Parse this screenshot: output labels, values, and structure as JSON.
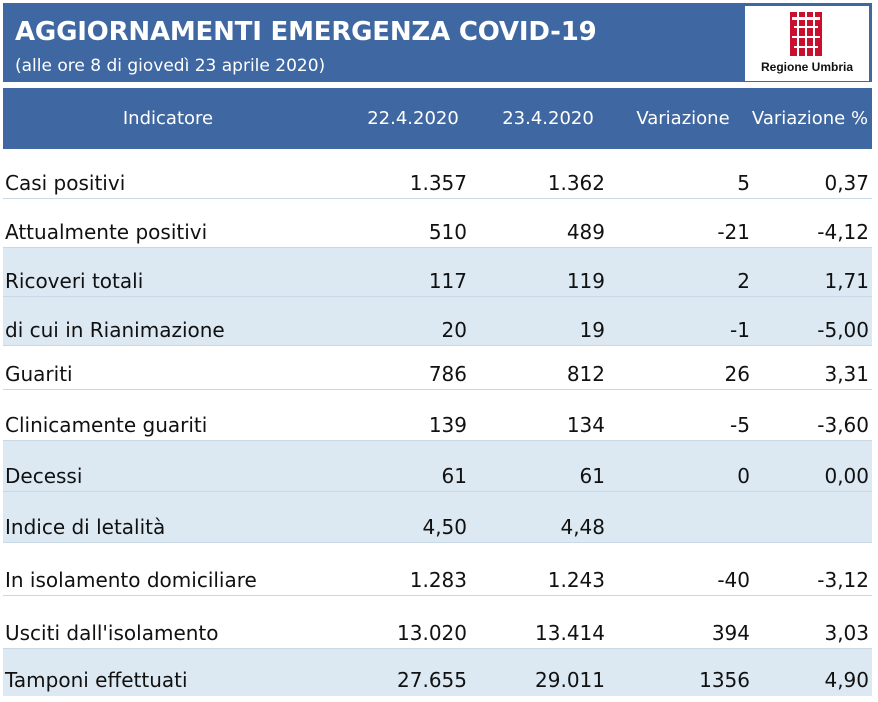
{
  "header": {
    "title": "AGGIORNAMENTI EMERGENZA COVID-19",
    "subtitle": "(alle ore 8 di giovedì 23 aprile 2020)",
    "logo_text": "Regione Umbria"
  },
  "colors": {
    "header_blue": "#3f67a1",
    "alt_row": "#dce9f2",
    "logo_red": "#c8102e"
  },
  "table": {
    "columns": [
      "Indicatore",
      "22.4.2020",
      "23.4.2020",
      "Variazione",
      "Variazione %"
    ],
    "rows": [
      {
        "label": "Casi positivi",
        "d1": "1.357",
        "d2": "1.362",
        "var": "5",
        "varp": "0,37"
      },
      {
        "label": "Attualmente positivi",
        "d1": "510",
        "d2": "489",
        "var": "-21",
        "varp": "-4,12"
      },
      {
        "label": "Ricoveri totali",
        "d1": "117",
        "d2": "119",
        "var": "2",
        "varp": "1,71"
      },
      {
        "label": "di cui in Rianimazione",
        "d1": "20",
        "d2": "19",
        "var": "-1",
        "varp": "-5,00"
      },
      {
        "label": "Guariti",
        "d1": "786",
        "d2": "812",
        "var": "26",
        "varp": "3,31"
      },
      {
        "label": "Clinicamente guariti",
        "d1": "139",
        "d2": "134",
        "var": "-5",
        "varp": "-3,60"
      },
      {
        "label": "Decessi",
        "d1": "61",
        "d2": "61",
        "var": "0",
        "varp": "0,00"
      },
      {
        "label": "Indice di letalità",
        "d1": "4,50",
        "d2": "4,48",
        "var": "",
        "varp": ""
      },
      {
        "label": "In isolamento domiciliare",
        "d1": "1.283",
        "d2": "1.243",
        "var": "-40",
        "varp": "-3,12"
      },
      {
        "label": "Usciti dall'isolamento",
        "d1": "13.020",
        "d2": "13.414",
        "var": "394",
        "varp": "3,03"
      },
      {
        "label": "Tamponi effettuati",
        "d1": "27.655",
        "d2": "29.011",
        "var": "1356",
        "varp": "4,90"
      }
    ]
  }
}
